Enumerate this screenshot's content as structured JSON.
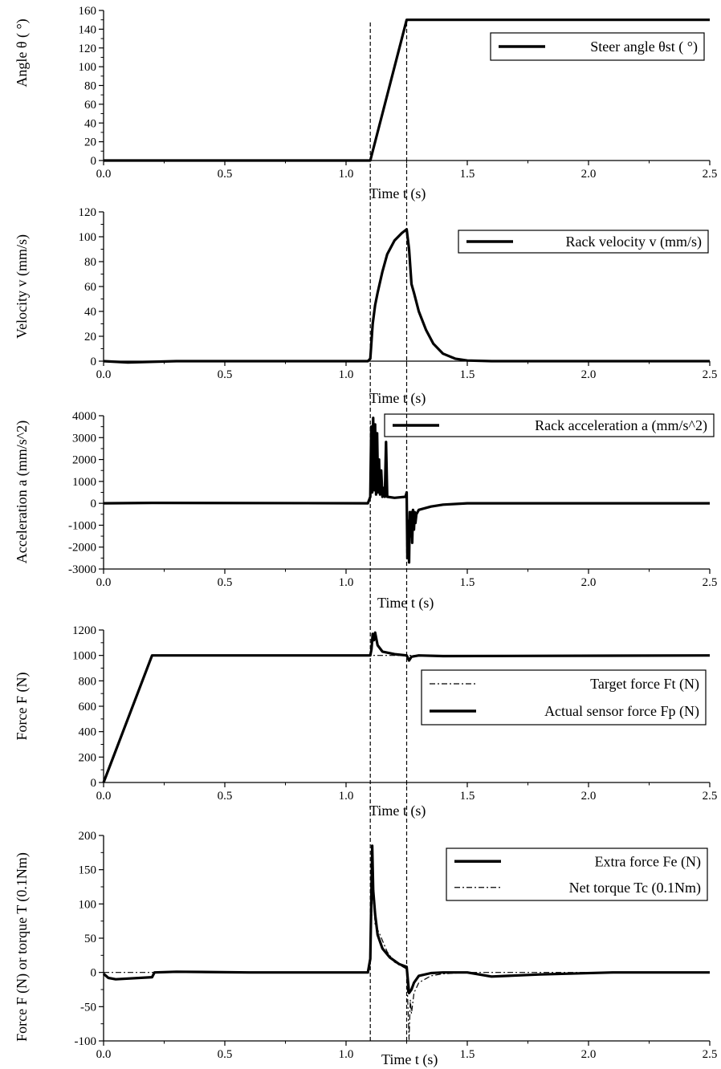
{
  "chart_data": [
    {
      "type": "line",
      "ylabel": "Angle θ ( °)",
      "xlabel": "Time t (s)",
      "xlim": [
        0,
        2.5
      ],
      "ylim": [
        0,
        160
      ],
      "xticks": [
        "0.0",
        "0.5",
        "1.0",
        "1.5",
        "2.0",
        "2.5"
      ],
      "yticks": [
        "0",
        "20",
        "40",
        "60",
        "80",
        "100",
        "120",
        "140",
        "160"
      ],
      "legend_position": "top-right",
      "series": [
        {
          "name": "Steer angle θst ( °)",
          "style": "solid",
          "x": [
            0,
            1.1,
            1.25,
            2.5
          ],
          "y": [
            0,
            0,
            150,
            150
          ]
        }
      ]
    },
    {
      "type": "line",
      "ylabel": "Velocity v (mm/s)",
      "xlabel": "Time t (s)",
      "xlim": [
        0,
        2.5
      ],
      "ylim": [
        0,
        120
      ],
      "xticks": [
        "0.0",
        "0.5",
        "1.0",
        "1.5",
        "2.0",
        "2.5"
      ],
      "yticks": [
        "0",
        "20",
        "40",
        "60",
        "80",
        "100",
        "120"
      ],
      "legend_position": "top-right",
      "series": [
        {
          "name": "Rack velocity v (mm/s)",
          "style": "solid",
          "x": [
            0,
            0.1,
            0.3,
            1.09,
            1.1,
            1.11,
            1.12,
            1.13,
            1.15,
            1.17,
            1.2,
            1.23,
            1.25,
            1.26,
            1.27,
            1.28,
            1.3,
            1.33,
            1.36,
            1.4,
            1.45,
            1.5,
            1.6,
            2.5
          ],
          "y": [
            0,
            -1,
            0,
            0,
            2,
            30,
            45,
            55,
            72,
            86,
            97,
            103,
            106,
            90,
            62,
            55,
            40,
            25,
            14,
            6,
            2,
            0.5,
            0,
            0
          ]
        }
      ]
    },
    {
      "type": "line",
      "ylabel": "Acceleration a (mm/s^2)",
      "xlabel": "Time t (s)",
      "xlim": [
        0,
        2.5
      ],
      "ylim": [
        -3000,
        4000
      ],
      "xticks": [
        "0.0",
        "0.5",
        "1.0",
        "1.5",
        "2.0",
        "2.5"
      ],
      "yticks": [
        "-3000",
        "-2000",
        "-1000",
        "0",
        "1000",
        "2000",
        "3000",
        "4000"
      ],
      "legend_position": "top-right",
      "series": [
        {
          "name": "Rack acceleration a (mm/s^2)",
          "style": "solid",
          "x": [
            0,
            0.2,
            1.09,
            1.1,
            1.104,
            1.108,
            1.112,
            1.116,
            1.12,
            1.124,
            1.128,
            1.132,
            1.136,
            1.14,
            1.145,
            1.15,
            1.155,
            1.16,
            1.165,
            1.17,
            1.2,
            1.245,
            1.25,
            1.253,
            1.256,
            1.26,
            1.263,
            1.266,
            1.27,
            1.273,
            1.276,
            1.28,
            1.283,
            1.286,
            1.29,
            1.3,
            1.35,
            1.4,
            1.5,
            2.5
          ],
          "y": [
            0,
            20,
            0,
            300,
            3500,
            500,
            3900,
            600,
            3600,
            400,
            3200,
            500,
            2000,
            400,
            1500,
            300,
            700,
            300,
            2800,
            300,
            250,
            300,
            500,
            -2500,
            -800,
            -2700,
            -400,
            -1500,
            -400,
            -1800,
            -300,
            -1200,
            -400,
            -900,
            -500,
            -300,
            -150,
            -60,
            0,
            0
          ]
        }
      ]
    },
    {
      "type": "line",
      "ylabel": "Force F (N)",
      "xlabel": "Time t (s)",
      "xlim": [
        0,
        2.5
      ],
      "ylim": [
        0,
        1200
      ],
      "xticks": [
        "0.0",
        "0.5",
        "1.0",
        "1.5",
        "2.0",
        "2.5"
      ],
      "yticks": [
        "0",
        "200",
        "400",
        "600",
        "800",
        "1000",
        "1200"
      ],
      "legend_position": "right",
      "series": [
        {
          "name": "Target force Ft (N)",
          "style": "dashdot",
          "x": [
            0,
            0.2,
            2.5
          ],
          "y": [
            0,
            1000,
            1000
          ]
        },
        {
          "name": "Actual sensor force Fp (N)",
          "style": "solid",
          "x": [
            0,
            0.2,
            1.1,
            1.105,
            1.11,
            1.115,
            1.12,
            1.13,
            1.15,
            1.2,
            1.25,
            1.26,
            1.27,
            1.3,
            1.4,
            2.5
          ],
          "y": [
            0,
            1000,
            1000,
            1050,
            1170,
            1120,
            1180,
            1080,
            1030,
            1010,
            1000,
            960,
            990,
            1000,
            995,
            1000
          ]
        }
      ]
    },
    {
      "type": "line",
      "ylabel": "Force F (N) or torque T (0.1Nm)",
      "xlabel": "Time t (s)",
      "xlim": [
        0,
        2.5
      ],
      "ylim": [
        -100,
        200
      ],
      "xticks": [
        "0.0",
        "0.5",
        "1.0",
        "1.5",
        "2.0",
        "2.5"
      ],
      "yticks": [
        "-100",
        "-50",
        "0",
        "50",
        "100",
        "150",
        "200"
      ],
      "legend_position": "top-right",
      "series": [
        {
          "name": "Extra force Fe (N)",
          "style": "solid",
          "x": [
            0,
            0.02,
            0.05,
            0.2,
            0.21,
            0.3,
            0.6,
            1.09,
            1.1,
            1.108,
            1.112,
            1.12,
            1.13,
            1.15,
            1.18,
            1.22,
            1.25,
            1.26,
            1.27,
            1.28,
            1.3,
            1.35,
            1.4,
            1.5,
            1.6,
            1.8,
            2.1,
            2.5
          ],
          "y": [
            -2,
            -8,
            -10,
            -7,
            0,
            1,
            0,
            0,
            20,
            185,
            120,
            85,
            55,
            35,
            22,
            12,
            8,
            -30,
            -25,
            -15,
            -5,
            -1,
            0,
            0,
            -6,
            -3,
            0,
            0
          ]
        },
        {
          "name": "Net torque Tc (0.1Nm)",
          "style": "dashdot",
          "x": [
            0,
            0.6,
            1.09,
            1.1,
            1.11,
            1.12,
            1.14,
            1.17,
            1.2,
            1.25,
            1.26,
            1.265,
            1.27,
            1.28,
            1.3,
            1.35,
            1.4,
            1.5,
            2.5
          ],
          "y": [
            0,
            0,
            0,
            10,
            130,
            70,
            55,
            30,
            15,
            5,
            -98,
            -40,
            -60,
            -30,
            -15,
            -5,
            -2,
            0,
            0
          ]
        }
      ]
    }
  ]
}
